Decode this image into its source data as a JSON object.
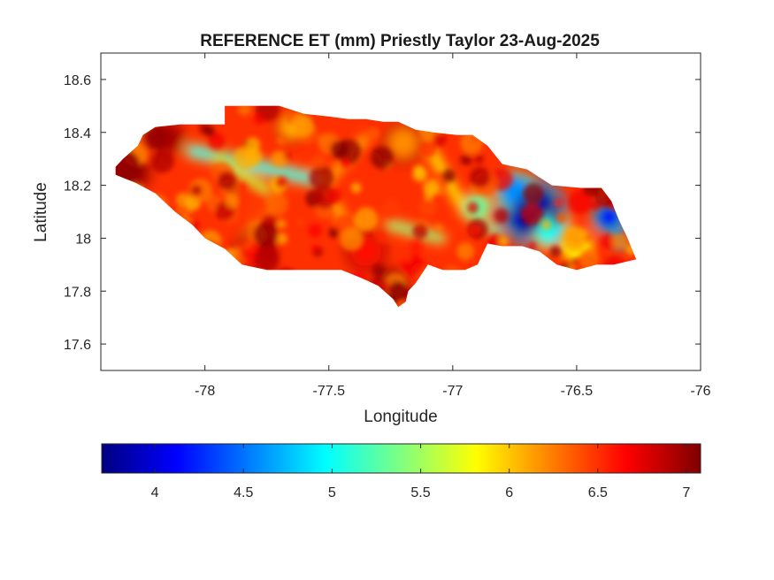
{
  "figure": {
    "title": "REFERENCE ET (mm) Priestly Taylor 23-Aug-2025"
  },
  "map": {
    "xlabel": "Longitude",
    "ylabel": "Latitude",
    "xlim": [
      -78.42,
      -76.0
    ],
    "ylim": [
      17.5,
      18.7
    ],
    "xticks": [
      -78,
      -77.5,
      -77,
      -76.5,
      -76
    ],
    "yticks": [
      17.6,
      17.8,
      18.0,
      18.2,
      18.4,
      18.6
    ],
    "xtick_labels": [
      "-78",
      "-77.5",
      "-77",
      "-76.5",
      "-76"
    ],
    "ytick_labels": [
      "17.6",
      "17.8",
      "18",
      "18.2",
      "18.4",
      "18.6"
    ]
  },
  "colorbar": {
    "colormap": "jet",
    "range": [
      3.7,
      7.08
    ],
    "ticks": [
      4,
      4.5,
      5,
      5.5,
      6,
      6.5,
      7
    ],
    "tick_labels": [
      "4",
      "4.5",
      "5",
      "5.5",
      "6",
      "6.5",
      "7"
    ],
    "location": "southoutside"
  },
  "chart_data": {
    "type": "heatmap",
    "title": "REFERENCE ET (mm) Priestly Taylor 23-Aug-2025",
    "xlabel": "Longitude",
    "ylabel": "Latitude",
    "xlim": [
      -78.42,
      -76.0
    ],
    "ylim": [
      17.5,
      18.7
    ],
    "value_range": [
      3.7,
      7.08
    ],
    "grid": false,
    "outline": [
      [
        -78.36,
        18.27
      ],
      [
        -78.33,
        18.3
      ],
      [
        -78.27,
        18.35
      ],
      [
        -78.25,
        18.39
      ],
      [
        -78.2,
        18.42
      ],
      [
        -78.1,
        18.43
      ],
      [
        -78.0,
        18.43
      ],
      [
        -77.92,
        18.43
      ],
      [
        -77.92,
        18.5
      ],
      [
        -77.8,
        18.5
      ],
      [
        -77.7,
        18.5
      ],
      [
        -77.6,
        18.47
      ],
      [
        -77.5,
        18.46
      ],
      [
        -77.42,
        18.45
      ],
      [
        -77.35,
        18.45
      ],
      [
        -77.28,
        18.44
      ],
      [
        -77.22,
        18.44
      ],
      [
        -77.15,
        18.41
      ],
      [
        -77.08,
        18.4
      ],
      [
        -76.98,
        18.39
      ],
      [
        -76.92,
        18.39
      ],
      [
        -76.86,
        18.35
      ],
      [
        -76.8,
        18.28
      ],
      [
        -76.7,
        18.26
      ],
      [
        -76.6,
        18.2
      ],
      [
        -76.48,
        18.19
      ],
      [
        -76.4,
        18.19
      ],
      [
        -76.36,
        18.14
      ],
      [
        -76.33,
        18.07
      ],
      [
        -76.3,
        18.01
      ],
      [
        -76.26,
        17.92
      ],
      [
        -76.35,
        17.9
      ],
      [
        -76.42,
        17.9
      ],
      [
        -76.5,
        17.88
      ],
      [
        -76.58,
        17.9
      ],
      [
        -76.65,
        17.95
      ],
      [
        -76.72,
        17.97
      ],
      [
        -76.8,
        17.97
      ],
      [
        -76.86,
        17.98
      ],
      [
        -76.9,
        17.9
      ],
      [
        -76.95,
        17.88
      ],
      [
        -77.04,
        17.88
      ],
      [
        -77.1,
        17.9
      ],
      [
        -77.15,
        17.83
      ],
      [
        -77.18,
        17.8
      ],
      [
        -77.19,
        17.76
      ],
      [
        -77.22,
        17.74
      ],
      [
        -77.24,
        17.77
      ],
      [
        -77.3,
        17.82
      ],
      [
        -77.37,
        17.85
      ],
      [
        -77.45,
        17.88
      ],
      [
        -77.55,
        17.88
      ],
      [
        -77.65,
        17.88
      ],
      [
        -77.75,
        17.88
      ],
      [
        -77.85,
        17.9
      ],
      [
        -77.92,
        17.96
      ],
      [
        -78.0,
        18.0
      ],
      [
        -78.05,
        18.05
      ],
      [
        -78.12,
        18.1
      ],
      [
        -78.2,
        18.17
      ],
      [
        -78.28,
        18.21
      ],
      [
        -78.36,
        18.24
      ]
    ],
    "features": [
      {
        "type": "ridge",
        "from": [
          -78.05,
          18.33
        ],
        "to": [
          -77.55,
          18.22
        ],
        "width": 0.035,
        "value": 5.0
      },
      {
        "type": "ridge",
        "from": [
          -77.95,
          18.3
        ],
        "to": [
          -77.75,
          18.18
        ],
        "width": 0.03,
        "value": 5.6
      },
      {
        "type": "ridge",
        "from": [
          -77.55,
          18.25
        ],
        "to": [
          -77.4,
          18.0
        ],
        "width": 0.03,
        "value": 6.0
      },
      {
        "type": "ridge",
        "from": [
          -77.5,
          18.22
        ],
        "to": [
          -77.35,
          18.38
        ],
        "width": 0.025,
        "value": 6.0
      },
      {
        "type": "ridge",
        "from": [
          -77.25,
          18.05
        ],
        "to": [
          -77.05,
          18.0
        ],
        "width": 0.03,
        "value": 5.4
      },
      {
        "type": "ridge",
        "from": [
          -77.7,
          18.15
        ],
        "to": [
          -77.85,
          18.0
        ],
        "width": 0.025,
        "value": 6.1
      },
      {
        "type": "ridge",
        "from": [
          -77.1,
          18.35
        ],
        "to": [
          -76.95,
          18.1
        ],
        "width": 0.03,
        "value": 5.8
      },
      {
        "type": "ridge",
        "from": [
          -76.95,
          18.1
        ],
        "to": [
          -76.82,
          18.02
        ],
        "width": 0.025,
        "value": 5.2
      },
      {
        "type": "spot",
        "center": [
          -76.68,
          18.1
        ],
        "radius": 0.1,
        "value": 3.9
      },
      {
        "type": "spot",
        "center": [
          -76.75,
          18.18
        ],
        "radius": 0.06,
        "value": 4.6
      },
      {
        "type": "spot",
        "center": [
          -76.6,
          18.03
        ],
        "radius": 0.06,
        "value": 5.0
      },
      {
        "type": "spot",
        "center": [
          -76.37,
          18.08
        ],
        "radius": 0.05,
        "value": 4.1
      },
      {
        "type": "spot",
        "center": [
          -76.32,
          18.0
        ],
        "radius": 0.03,
        "value": 4.3
      },
      {
        "type": "spot",
        "center": [
          -76.5,
          17.97
        ],
        "radius": 0.06,
        "value": 5.8
      },
      {
        "type": "spot",
        "center": [
          -76.9,
          18.12
        ],
        "radius": 0.05,
        "value": 5.3
      },
      {
        "type": "spot",
        "center": [
          -77.2,
          18.36
        ],
        "radius": 0.06,
        "value": 6.2
      },
      {
        "type": "spot",
        "center": [
          -77.65,
          18.42
        ],
        "radius": 0.05,
        "value": 6.1
      },
      {
        "type": "spot",
        "center": [
          -78.3,
          18.25
        ],
        "radius": 0.06,
        "value": 7.0
      },
      {
        "type": "spot",
        "center": [
          -77.25,
          17.82
        ],
        "radius": 0.05,
        "value": 7.05
      },
      {
        "type": "spot",
        "center": [
          -78.15,
          18.38
        ],
        "radius": 0.05,
        "value": 6.95
      },
      {
        "type": "spot",
        "center": [
          -77.35,
          17.95
        ],
        "radius": 0.06,
        "value": 6.6
      },
      {
        "type": "spot",
        "center": [
          -77.8,
          17.95
        ],
        "radius": 0.06,
        "value": 6.6
      }
    ],
    "background_value": 6.5
  }
}
